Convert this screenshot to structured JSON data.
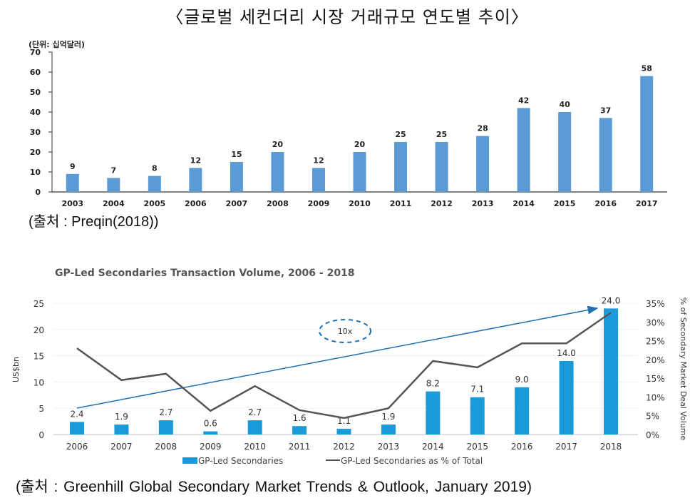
{
  "page": {
    "title": "〈글로벌 세컨더리 시장 거래규모 연도별 추이〉",
    "source1": "(출처 : Preqin(2018))",
    "source2": "(출처 : Greenhill Global Secondary Market Trends & Outlook, January 2019)"
  },
  "chart_data": [
    {
      "type": "bar",
      "title": "〈글로벌 세컨더리 시장 거래규모 연도별 추이〉",
      "unit_label": "(단위: 십억달러)",
      "xlabel": "",
      "ylabel": "",
      "categories": [
        "2003",
        "2004",
        "2005",
        "2006",
        "2007",
        "2008",
        "2009",
        "2010",
        "2011",
        "2012",
        "2013",
        "2014",
        "2015",
        "2016",
        "2017"
      ],
      "values": [
        9,
        7,
        8,
        12,
        15,
        20,
        12,
        20,
        25,
        25,
        28,
        42,
        40,
        37,
        58
      ],
      "data_labels": [
        "9",
        "7",
        "8",
        "12",
        "15",
        "20",
        "12",
        "20",
        "25",
        "25",
        "28",
        "42",
        "40",
        "37",
        "58"
      ],
      "ylim": [
        0,
        70
      ],
      "yticks": [
        "0",
        "10",
        "20",
        "30",
        "40",
        "50",
        "60",
        "70"
      ],
      "grid": false,
      "bar_color": "#5B9BD5"
    },
    {
      "type": "bar",
      "title": "GP-Led Secondaries Transaction Volume, 2006 - 2018",
      "ylabel": "US$bn",
      "y2label": "% of Secondary Market Deal Volume",
      "categories": [
        "2006",
        "2007",
        "2008",
        "2009",
        "2010",
        "2011",
        "2012",
        "2013",
        "2014",
        "2015",
        "2016",
        "2017",
        "2018"
      ],
      "series": [
        {
          "name": "GP-Led Secondaries",
          "type": "bar",
          "axis": "left",
          "values": [
            2.4,
            1.9,
            2.7,
            0.6,
            2.7,
            1.6,
            1.1,
            1.9,
            8.2,
            7.1,
            9.0,
            14.0,
            24.0
          ],
          "data_labels": [
            "2.4",
            "1.9",
            "2.7",
            "0.6",
            "2.7",
            "1.6",
            "1.1",
            "1.9",
            "8.2",
            "7.1",
            "9.0",
            "14.0",
            "24.0"
          ],
          "color": "#1A9AD9"
        },
        {
          "name": "GP-Led Secondaries as % of Total",
          "type": "line",
          "axis": "right",
          "values": [
            23.0,
            14.5,
            16.2,
            6.3,
            12.9,
            6.5,
            4.4,
            7.0,
            19.6,
            17.9,
            24.3,
            24.3,
            32.5
          ],
          "color": "#555555"
        }
      ],
      "ylim": [
        0,
        25
      ],
      "yticks": [
        "0",
        "5",
        "10",
        "15",
        "20",
        "25"
      ],
      "y2lim": [
        0,
        35
      ],
      "y2ticks": [
        "0%",
        "5%",
        "10%",
        "15%",
        "20%",
        "25%",
        "30%",
        "35%"
      ],
      "grid": true,
      "legend": "bottom",
      "annotation": {
        "text": "10x",
        "arrow_color": "#1F6FB2",
        "arrow_from": "2006",
        "arrow_to": "2018"
      }
    }
  ]
}
